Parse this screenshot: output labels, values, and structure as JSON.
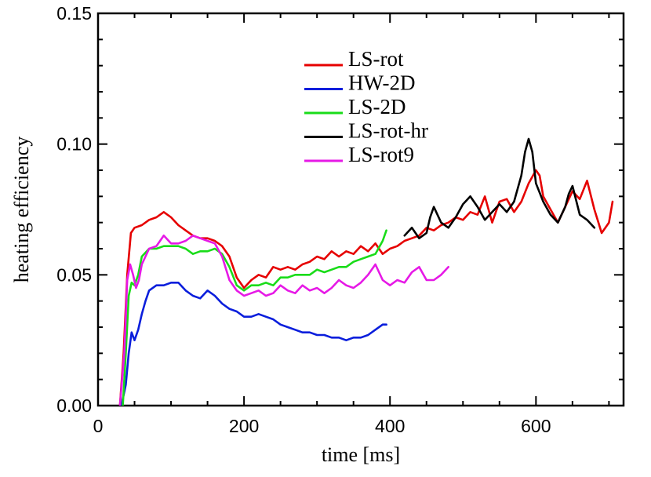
{
  "chart_data": {
    "type": "line",
    "title": "",
    "xlabel": "time [ms]",
    "ylabel": "heating efficiency",
    "xlim": [
      0,
      720
    ],
    "ylim": [
      0,
      0.15
    ],
    "xticks": [
      0,
      200,
      400,
      600
    ],
    "xtick_labels": [
      "0",
      "200",
      "400",
      "600"
    ],
    "yticks": [
      0.0,
      0.05,
      0.1,
      0.15
    ],
    "ytick_labels": [
      "0.00",
      "0.05",
      "0.10",
      "0.15"
    ],
    "grid": false,
    "legend_position": "top-center",
    "series": [
      {
        "name": "LS-rot",
        "color": "#e60000",
        "x": [
          30,
          35,
          40,
          45,
          50,
          60,
          70,
          80,
          90,
          100,
          110,
          120,
          130,
          140,
          150,
          160,
          170,
          180,
          190,
          200,
          210,
          220,
          230,
          240,
          250,
          260,
          270,
          280,
          290,
          300,
          310,
          320,
          330,
          340,
          350,
          360,
          370,
          380,
          390,
          400,
          410,
          420,
          430,
          440,
          450,
          460,
          470,
          480,
          490,
          500,
          510,
          520,
          530,
          540,
          550,
          560,
          570,
          580,
          590,
          600,
          605,
          610,
          620,
          630,
          640,
          650,
          660,
          670,
          680,
          690,
          700,
          705
        ],
        "y": [
          0.0,
          0.02,
          0.05,
          0.066,
          0.068,
          0.069,
          0.071,
          0.072,
          0.074,
          0.072,
          0.069,
          0.067,
          0.065,
          0.064,
          0.064,
          0.063,
          0.061,
          0.057,
          0.049,
          0.045,
          0.048,
          0.05,
          0.049,
          0.053,
          0.052,
          0.053,
          0.052,
          0.054,
          0.055,
          0.057,
          0.056,
          0.059,
          0.057,
          0.059,
          0.058,
          0.061,
          0.059,
          0.062,
          0.058,
          0.06,
          0.061,
          0.063,
          0.064,
          0.065,
          0.068,
          0.067,
          0.069,
          0.07,
          0.072,
          0.071,
          0.074,
          0.073,
          0.08,
          0.07,
          0.078,
          0.079,
          0.074,
          0.078,
          0.085,
          0.09,
          0.088,
          0.08,
          0.075,
          0.07,
          0.076,
          0.082,
          0.079,
          0.086,
          0.075,
          0.066,
          0.07,
          0.078
        ]
      },
      {
        "name": "HW-2D",
        "color": "#0a1edc",
        "x": [
          32,
          38,
          42,
          46,
          50,
          55,
          60,
          65,
          70,
          80,
          90,
          100,
          110,
          120,
          130,
          140,
          150,
          160,
          170,
          180,
          190,
          200,
          210,
          220,
          230,
          240,
          250,
          260,
          270,
          280,
          290,
          300,
          310,
          320,
          330,
          340,
          350,
          360,
          370,
          380,
          390,
          395
        ],
        "y": [
          0.0,
          0.008,
          0.02,
          0.028,
          0.025,
          0.029,
          0.035,
          0.04,
          0.044,
          0.046,
          0.046,
          0.047,
          0.047,
          0.044,
          0.042,
          0.041,
          0.044,
          0.042,
          0.039,
          0.037,
          0.036,
          0.034,
          0.034,
          0.035,
          0.034,
          0.033,
          0.031,
          0.03,
          0.029,
          0.028,
          0.028,
          0.027,
          0.027,
          0.026,
          0.026,
          0.025,
          0.026,
          0.026,
          0.027,
          0.029,
          0.031,
          0.031
        ]
      },
      {
        "name": "LS-2D",
        "color": "#19dc19",
        "x": [
          34,
          38,
          42,
          46,
          50,
          55,
          60,
          70,
          80,
          90,
          100,
          110,
          120,
          130,
          140,
          150,
          160,
          170,
          180,
          190,
          200,
          210,
          220,
          230,
          240,
          250,
          260,
          270,
          280,
          290,
          300,
          310,
          320,
          330,
          340,
          350,
          360,
          370,
          380,
          390,
          395
        ],
        "y": [
          0.0,
          0.02,
          0.042,
          0.047,
          0.046,
          0.05,
          0.057,
          0.06,
          0.06,
          0.061,
          0.061,
          0.061,
          0.06,
          0.058,
          0.059,
          0.059,
          0.06,
          0.058,
          0.053,
          0.046,
          0.044,
          0.046,
          0.046,
          0.047,
          0.046,
          0.049,
          0.049,
          0.05,
          0.05,
          0.05,
          0.052,
          0.051,
          0.052,
          0.053,
          0.053,
          0.055,
          0.056,
          0.057,
          0.058,
          0.063,
          0.067
        ]
      },
      {
        "name": "LS-rot-hr",
        "color": "#000000",
        "x": [
          420,
          430,
          440,
          450,
          455,
          460,
          470,
          480,
          490,
          500,
          510,
          520,
          530,
          540,
          550,
          560,
          570,
          580,
          585,
          590,
          595,
          600,
          610,
          620,
          630,
          640,
          645,
          650,
          660,
          670,
          680
        ],
        "y": [
          0.065,
          0.068,
          0.064,
          0.066,
          0.072,
          0.076,
          0.07,
          0.068,
          0.072,
          0.077,
          0.08,
          0.076,
          0.071,
          0.074,
          0.077,
          0.074,
          0.078,
          0.088,
          0.097,
          0.102,
          0.097,
          0.085,
          0.078,
          0.073,
          0.07,
          0.076,
          0.081,
          0.084,
          0.073,
          0.071,
          0.068
        ]
      },
      {
        "name": "LS-rot9",
        "color": "#e619e6",
        "x": [
          30,
          36,
          40,
          44,
          48,
          52,
          56,
          60,
          70,
          80,
          90,
          100,
          110,
          120,
          130,
          140,
          150,
          160,
          170,
          180,
          190,
          200,
          210,
          220,
          230,
          240,
          250,
          260,
          270,
          280,
          290,
          300,
          310,
          320,
          330,
          340,
          350,
          360,
          370,
          380,
          390,
          400,
          410,
          420,
          430,
          440,
          450,
          460,
          470,
          480
        ],
        "y": [
          0.0,
          0.02,
          0.048,
          0.054,
          0.05,
          0.045,
          0.048,
          0.054,
          0.06,
          0.061,
          0.065,
          0.062,
          0.062,
          0.063,
          0.065,
          0.064,
          0.063,
          0.062,
          0.057,
          0.048,
          0.044,
          0.042,
          0.043,
          0.044,
          0.042,
          0.043,
          0.046,
          0.044,
          0.043,
          0.046,
          0.044,
          0.045,
          0.043,
          0.045,
          0.048,
          0.046,
          0.045,
          0.047,
          0.05,
          0.054,
          0.048,
          0.046,
          0.048,
          0.047,
          0.051,
          0.053,
          0.048,
          0.048,
          0.05,
          0.053
        ]
      }
    ]
  }
}
